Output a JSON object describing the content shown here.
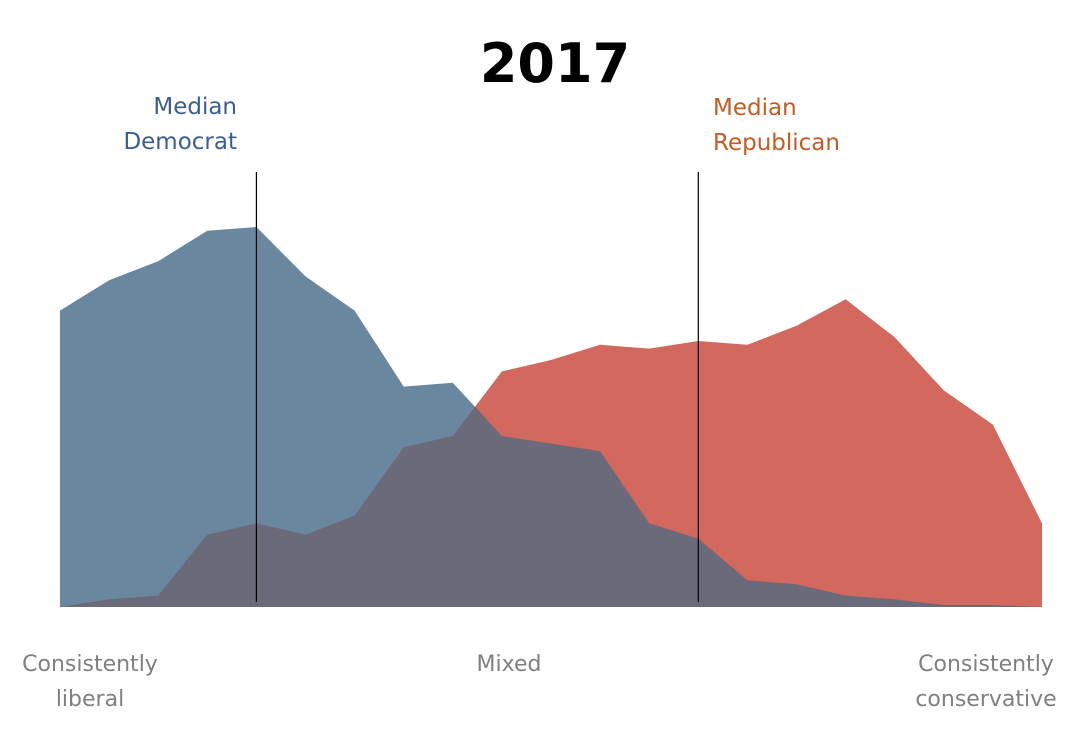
{
  "chart_data": {
    "type": "area",
    "title": "2017",
    "x": [
      0,
      1,
      2,
      3,
      4,
      5,
      6,
      7,
      8,
      9,
      10,
      11,
      12,
      13,
      14,
      15,
      16,
      17,
      18,
      19,
      20
    ],
    "ylim": [
      0,
      100
    ],
    "grid": false,
    "legend": "none",
    "series": [
      {
        "key": "democrat",
        "color": "#6a87a0",
        "values": [
          78,
          86,
          91,
          99,
          100,
          87,
          78,
          58,
          59,
          45,
          43,
          41,
          22,
          18,
          7,
          6,
          3,
          2,
          0.5,
          0.5,
          0
        ]
      },
      {
        "key": "republican",
        "color": "#c9483a",
        "values": [
          0,
          2,
          3,
          19,
          22,
          19,
          24,
          42,
          45,
          62,
          65,
          69,
          68,
          70,
          69,
          74,
          81,
          71,
          57,
          48,
          22
        ]
      }
    ],
    "overlap_color": "#6b6a7b",
    "medians": [
      {
        "key": "democrat",
        "x": 4,
        "label_line1": "Median",
        "label_line2": "Democrat",
        "color": "#3a5e94"
      },
      {
        "key": "republican",
        "x": 13,
        "label_line1": "Median",
        "label_line2": "Republican",
        "color": "#c55a22"
      }
    ],
    "x_labels": {
      "left_line1": "Consistently",
      "left_line2": "liberal",
      "center": "Mixed",
      "right_line1": "Consistently",
      "right_line2": "conservative"
    }
  }
}
